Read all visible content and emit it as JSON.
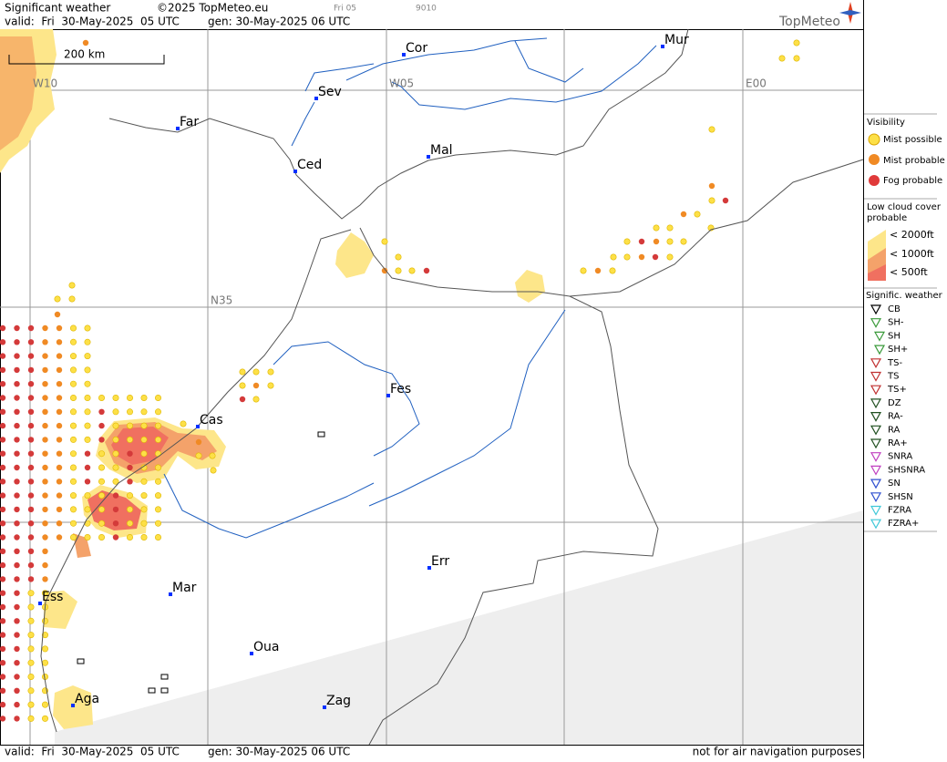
{
  "header": {
    "title": "Significant weather",
    "copyright": "©2025 TopMeteo.eu",
    "run": "Fri 05",
    "code": "9010",
    "valid": "valid:  Fri  30-May-2025  05 UTC",
    "generated": "gen: 30-May-2025 06 UTC",
    "brand": "TopMeteo"
  },
  "map": {
    "scale": "200 km",
    "grid_labels": [
      "W10",
      "W05",
      "E00",
      "N35"
    ],
    "cities": [
      "Cor",
      "Mur",
      "Sev",
      "Far",
      "Mal",
      "Ced",
      "Fes",
      "Cas",
      "Err",
      "Mar",
      "Ess",
      "Oua",
      "Aga",
      "Zag"
    ]
  },
  "legend": {
    "visibility": {
      "title": "Visibility",
      "items": [
        "Mist possible",
        "Mist probable",
        "Fog probable"
      ]
    },
    "low_cloud": {
      "title": [
        "Low cloud cover",
        "probable"
      ],
      "items": [
        "< 2000ft",
        "< 1000ft",
        "<  500ft"
      ]
    },
    "weather": {
      "title": "Signific. weather",
      "items": [
        "CB",
        "SH-",
        "SH",
        "SH+",
        "TS-",
        "TS",
        "TS+",
        "DZ",
        "RA-",
        "RA",
        "RA+",
        "SNRA",
        "SHSNRA",
        "SN",
        "SHSN",
        "FZRA",
        "FZRA+"
      ]
    }
  },
  "footer": {
    "valid": "valid:  Fri  30-May-2025  05 UTC",
    "generated": "gen: 30-May-2025 06 UTC",
    "disclaimer": "not for air navigation purposes"
  }
}
